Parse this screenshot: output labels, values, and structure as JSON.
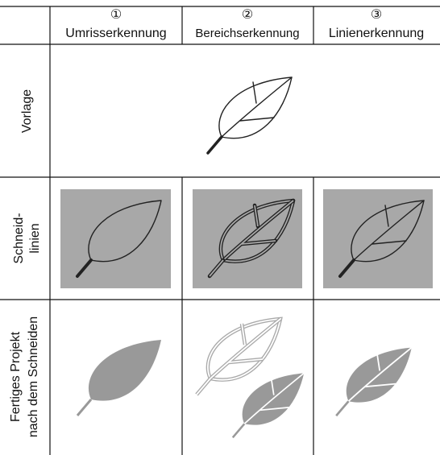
{
  "table": {
    "columns": [
      {
        "number": "①",
        "label": "Umrisserkennung"
      },
      {
        "number": "②",
        "label": "Bereichserkennung"
      },
      {
        "number": "③",
        "label": "Linienerkennung"
      }
    ],
    "rows": [
      {
        "label": [
          "Vorlage"
        ]
      },
      {
        "label": [
          "Schneid-",
          "linien"
        ]
      },
      {
        "label": [
          "Fertiges Projekt",
          "nach dem Schneiden"
        ]
      }
    ]
  }
}
